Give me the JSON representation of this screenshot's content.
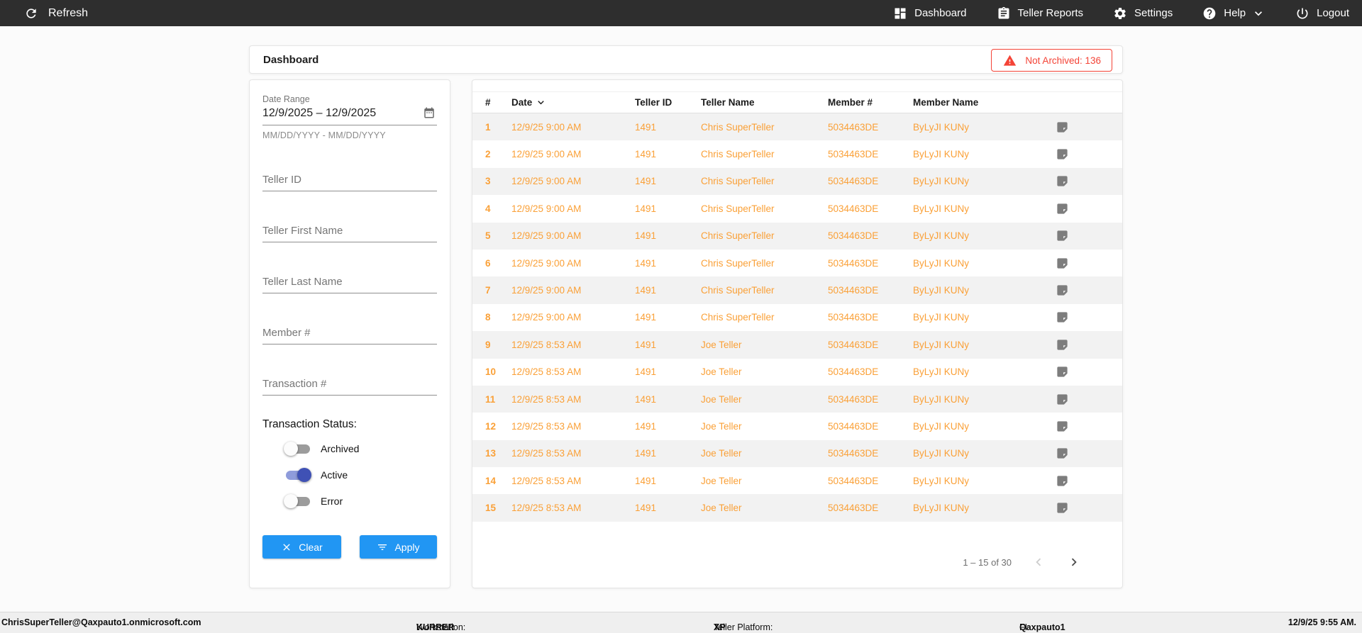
{
  "navbar": {
    "refresh_label": "Refresh",
    "items": [
      {
        "label": "Dashboard",
        "icon": "dashboard-icon"
      },
      {
        "label": "Teller Reports",
        "icon": "clipboard-icon"
      },
      {
        "label": "Settings",
        "icon": "gear-icon"
      },
      {
        "label": "Help",
        "icon": "help-icon",
        "has_dropdown": true
      },
      {
        "label": "Logout",
        "icon": "power-icon"
      }
    ]
  },
  "header": {
    "title": "Dashboard",
    "badge_label": "Not Archived: 136"
  },
  "filters": {
    "date_range": {
      "label": "Date Range",
      "value": "12/9/2025 – 12/9/2025",
      "helper": "MM/DD/YYYY - MM/DD/YYYY"
    },
    "text_fields": [
      {
        "placeholder": "Teller ID"
      },
      {
        "placeholder": "Teller First Name"
      },
      {
        "placeholder": "Teller Last Name"
      },
      {
        "placeholder": "Member #"
      },
      {
        "placeholder": "Transaction #"
      }
    ],
    "status": {
      "label": "Transaction Status:",
      "toggles": [
        {
          "label": "Archived",
          "on": false
        },
        {
          "label": "Active",
          "on": true
        },
        {
          "label": "Error",
          "on": false
        }
      ]
    },
    "clear_label": "Clear",
    "apply_label": "Apply"
  },
  "table": {
    "columns": [
      "#",
      "Date",
      "Teller ID",
      "Teller Name",
      "Member #",
      "Member Name"
    ],
    "sorted_by": "Date",
    "sort_direction": "desc",
    "rows": [
      {
        "num": "1",
        "date": "12/9/25 9:00 AM",
        "teller_id": "1491",
        "teller_name": "Chris SuperTeller",
        "member_num": "5034463DE",
        "member_name": "ByLyJI KUNy"
      },
      {
        "num": "2",
        "date": "12/9/25 9:00 AM",
        "teller_id": "1491",
        "teller_name": "Chris SuperTeller",
        "member_num": "5034463DE",
        "member_name": "ByLyJI KUNy"
      },
      {
        "num": "3",
        "date": "12/9/25 9:00 AM",
        "teller_id": "1491",
        "teller_name": "Chris SuperTeller",
        "member_num": "5034463DE",
        "member_name": "ByLyJI KUNy"
      },
      {
        "num": "4",
        "date": "12/9/25 9:00 AM",
        "teller_id": "1491",
        "teller_name": "Chris SuperTeller",
        "member_num": "5034463DE",
        "member_name": "ByLyJI KUNy"
      },
      {
        "num": "5",
        "date": "12/9/25 9:00 AM",
        "teller_id": "1491",
        "teller_name": "Chris SuperTeller",
        "member_num": "5034463DE",
        "member_name": "ByLyJI KUNy"
      },
      {
        "num": "6",
        "date": "12/9/25 9:00 AM",
        "teller_id": "1491",
        "teller_name": "Chris SuperTeller",
        "member_num": "5034463DE",
        "member_name": "ByLyJI KUNy"
      },
      {
        "num": "7",
        "date": "12/9/25 9:00 AM",
        "teller_id": "1491",
        "teller_name": "Chris SuperTeller",
        "member_num": "5034463DE",
        "member_name": "ByLyJI KUNy"
      },
      {
        "num": "8",
        "date": "12/9/25 9:00 AM",
        "teller_id": "1491",
        "teller_name": "Chris SuperTeller",
        "member_num": "5034463DE",
        "member_name": "ByLyJI KUNy"
      },
      {
        "num": "9",
        "date": "12/9/25 8:53 AM",
        "teller_id": "1491",
        "teller_name": "Joe Teller",
        "member_num": "5034463DE",
        "member_name": "ByLyJI KUNy"
      },
      {
        "num": "10",
        "date": "12/9/25 8:53 AM",
        "teller_id": "1491",
        "teller_name": "Joe Teller",
        "member_num": "5034463DE",
        "member_name": "ByLyJI KUNy"
      },
      {
        "num": "11",
        "date": "12/9/25 8:53 AM",
        "teller_id": "1491",
        "teller_name": "Joe Teller",
        "member_num": "5034463DE",
        "member_name": "ByLyJI KUNy"
      },
      {
        "num": "12",
        "date": "12/9/25 8:53 AM",
        "teller_id": "1491",
        "teller_name": "Joe Teller",
        "member_num": "5034463DE",
        "member_name": "ByLyJI KUNy"
      },
      {
        "num": "13",
        "date": "12/9/25 8:53 AM",
        "teller_id": "1491",
        "teller_name": "Joe Teller",
        "member_num": "5034463DE",
        "member_name": "ByLyJI KUNy"
      },
      {
        "num": "14",
        "date": "12/9/25 8:53 AM",
        "teller_id": "1491",
        "teller_name": "Joe Teller",
        "member_num": "5034463DE",
        "member_name": "ByLyJI KUNy"
      },
      {
        "num": "15",
        "date": "12/9/25 8:53 AM",
        "teller_id": "1491",
        "teller_name": "Joe Teller",
        "member_num": "5034463DE",
        "member_name": "ByLyJI KUNy"
      }
    ],
    "row_icon": "note-icon",
    "pagination": {
      "range_label": "1 – 15 of 30"
    }
  },
  "status_bar": {
    "user": "ChrisSuperTeller@Qaxpauto1.onmicrosoft.com",
    "workstation_label": "Workstation:",
    "workstation_value": "KURRER",
    "platform_label": "Teller Platform:",
    "platform_value": "XP",
    "fi_label": "FI:",
    "fi_value": "Qaxpauto1",
    "timestamp": "12/9/25 9:55 AM."
  },
  "colors": {
    "navbar_bg": "#2e2e2e",
    "row_text_orange": "#faa037",
    "button_blue": "#2196f3",
    "toggle_on_indigo": "#3f51b5",
    "badge_red": "#f44336",
    "row_alt_gray": "#f2f2f2"
  }
}
